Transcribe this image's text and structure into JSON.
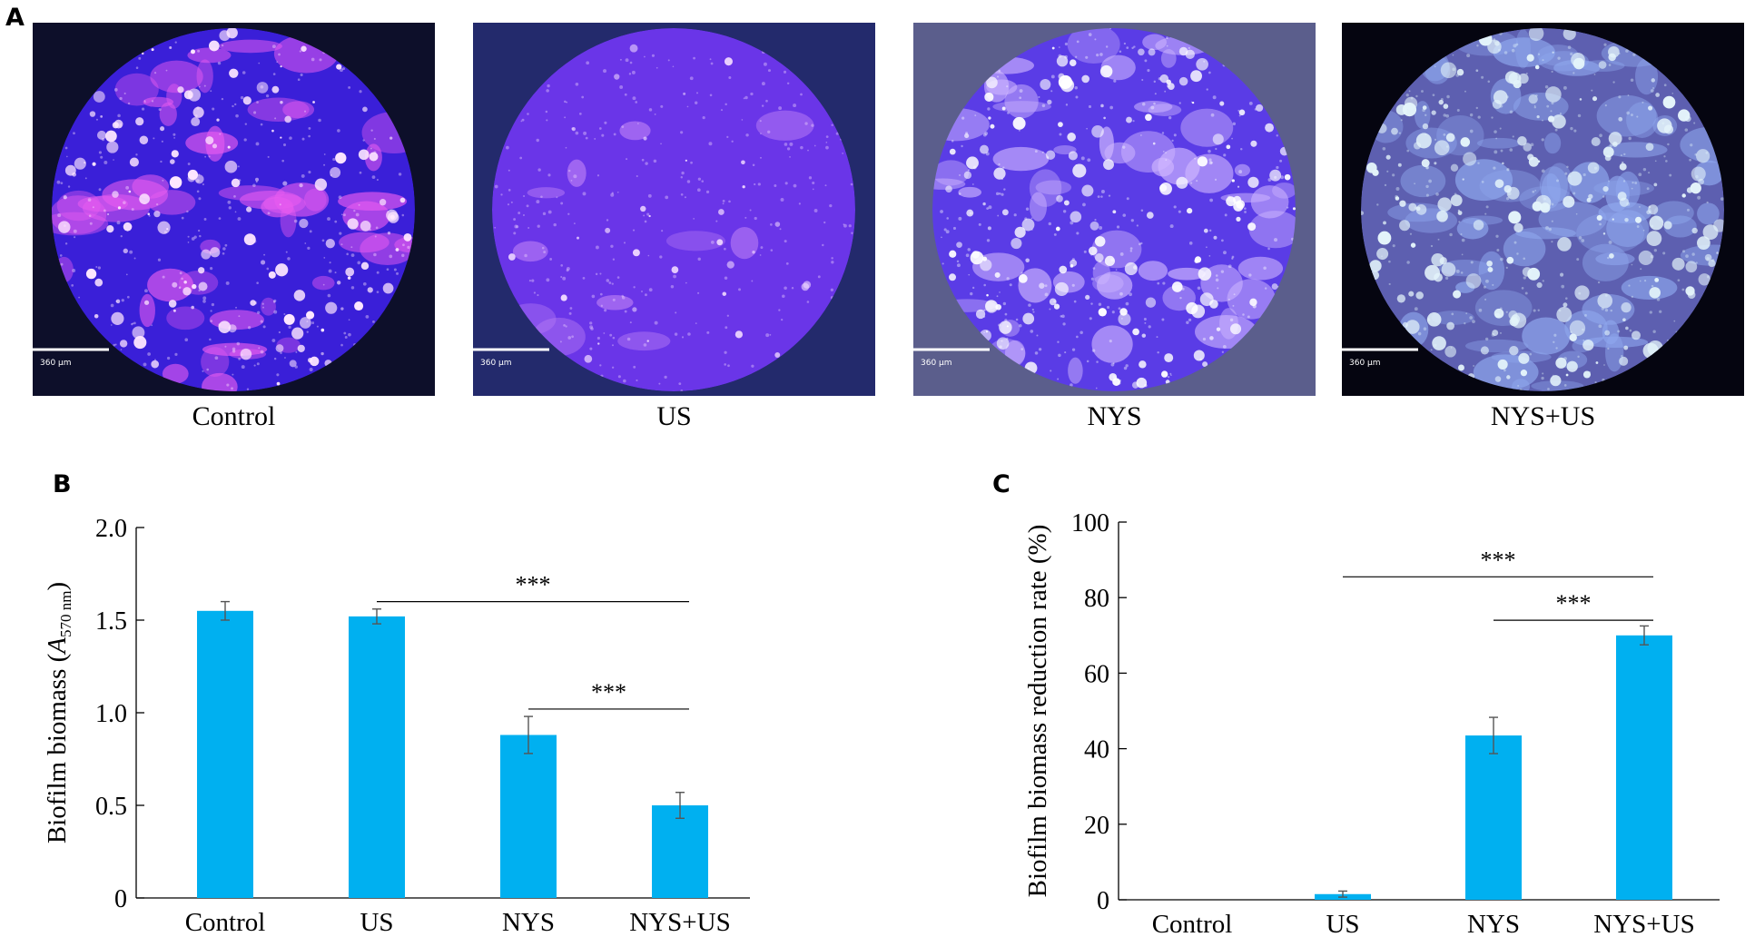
{
  "panels": {
    "a": "A",
    "b": "B",
    "c": "C"
  },
  "micrographs": [
    {
      "label": "Control",
      "scale": "360 µm",
      "bg": "#0d0f2a",
      "base": "#3a1fd8",
      "speckle": "#e85cf0",
      "highlight": "#ffe8ff",
      "density": 0.55
    },
    {
      "label": "US",
      "scale": "360 µm",
      "bg": "#232a6c",
      "base": "#6a35e8",
      "speckle": "#b87cf5",
      "highlight": "#f0d8ff",
      "density": 0.12
    },
    {
      "label": "NYS",
      "scale": "360 µm",
      "bg": "#5b5e8c",
      "base": "#5a3ce6",
      "speckle": "#d0b8ff",
      "highlight": "#ffffff",
      "density": 0.6
    },
    {
      "label": "NYS+US",
      "scale": "360 µm",
      "bg": "#050510",
      "base": "#5d5fb0",
      "speckle": "#8fa8ee",
      "highlight": "#e4f4fa",
      "density": 0.8
    }
  ],
  "chart_data": [
    {
      "type": "bar",
      "categories": [
        "Control",
        "US",
        "NYS",
        "NYS+US"
      ],
      "values": [
        1.55,
        1.52,
        0.88,
        0.5
      ],
      "errors": [
        0.05,
        0.04,
        0.1,
        0.07
      ],
      "ylabel_main": "Biofilm biomass (",
      "ylabel_var": "A",
      "ylabel_sub": "570 nm",
      "ylabel_end": ")",
      "ylim": [
        0,
        2.0
      ],
      "yticks": [
        0,
        0.5,
        1.0,
        1.5,
        2.0
      ],
      "ytick_labels": [
        "0",
        "0.5",
        "1.0",
        "1.5",
        "2.0"
      ],
      "bar_color": "#00b0f0",
      "significance": [
        {
          "from": 1,
          "to": 3,
          "label": "***",
          "y": 1.6
        },
        {
          "from": 2,
          "to": 3,
          "label": "***",
          "y": 1.02
        }
      ]
    },
    {
      "type": "bar",
      "categories": [
        "Control",
        "US",
        "NYS",
        "NYS+US"
      ],
      "values": [
        0,
        1.5,
        43.5,
        70
      ],
      "errors": [
        0,
        0.8,
        4.8,
        2.5
      ],
      "ylabel": "Biofilm biomass reduction rate (%)",
      "ylim": [
        0,
        100
      ],
      "yticks": [
        0,
        20,
        40,
        60,
        80,
        100
      ],
      "ytick_labels": [
        "0",
        "20",
        "40",
        "60",
        "80",
        "100"
      ],
      "bar_color": "#00b0f0",
      "significance": [
        {
          "from": 1,
          "to": 3,
          "label": "***",
          "y": 85.5
        },
        {
          "from": 2,
          "to": 3,
          "label": "***",
          "y": 74
        }
      ]
    }
  ]
}
